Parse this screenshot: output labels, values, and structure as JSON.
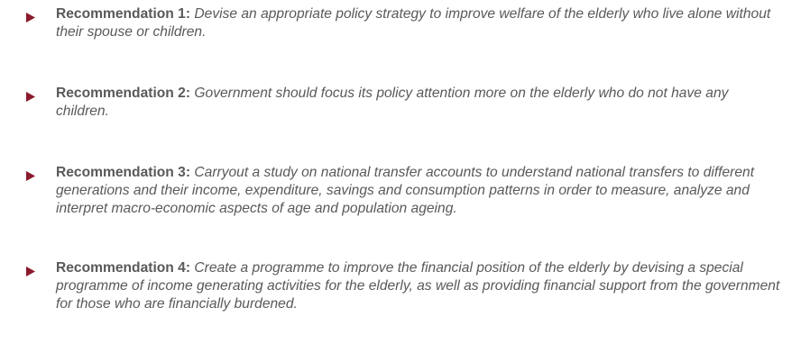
{
  "recommendations": [
    {
      "label": "Recommendation 1:",
      "text": "Devise an appropriate policy strategy to improve welfare of the elderly who live alone without their spouse or children."
    },
    {
      "label": "Recommendation 2:",
      "text": "Government should focus its policy attention more on the elderly who do not have any children."
    },
    {
      "label": "Recommendation 3:",
      "text": "Carryout a study on national transfer accounts to understand national transfers to different generations and their income, expenditure, savings and consumption patterns in order to measure, analyze and interpret macro-economic aspects of age and population ageing."
    },
    {
      "label": "Recommendation 4:",
      "text": "Create a programme to improve the financial position of the elderly by devising a special programme of income generating activities for the elderly, as well as providing financial support from the government for those who are financially burdened."
    }
  ]
}
